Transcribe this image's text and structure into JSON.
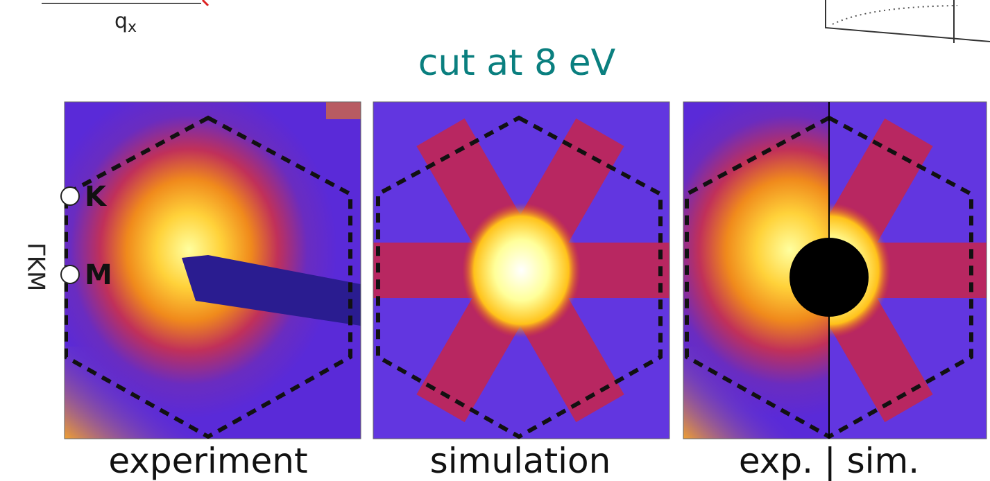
{
  "header": {
    "axis_symbol": "q",
    "axis_subscript": "x"
  },
  "title": "cut at 8 eV",
  "side_label": "ΓKM",
  "points": [
    "K",
    "M"
  ],
  "panels": [
    {
      "caption": "experiment"
    },
    {
      "caption": "simulation"
    },
    {
      "caption": "exp. | sim."
    }
  ]
}
